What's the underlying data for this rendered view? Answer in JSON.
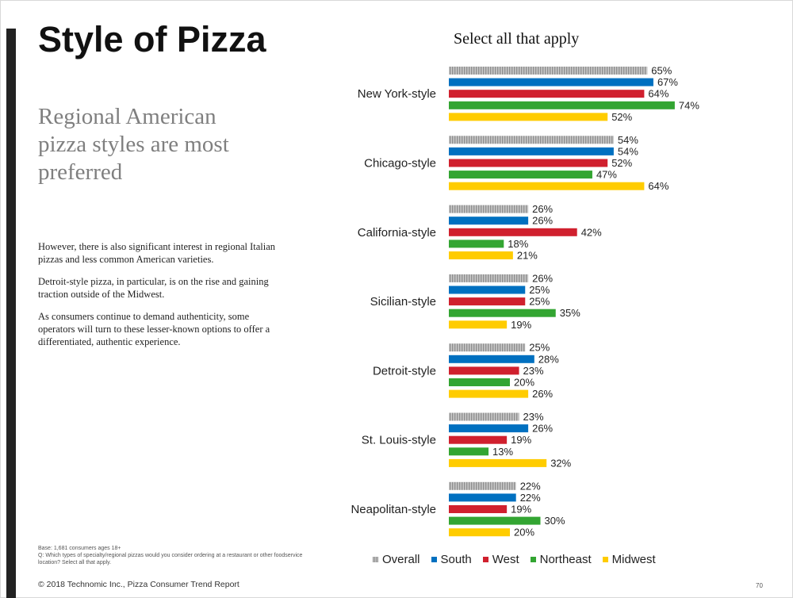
{
  "slide": {
    "title": "Style of Pizza",
    "subtitle": "Regional American pizza styles are most preferred",
    "paragraphs": [
      "However, there is also significant interest in regional Italian pizzas and less common American varieties.",
      "Detroit-style pizza, in particular, is on the rise and gaining traction outside of the Midwest.",
      "As consumers continue to demand authenticity, some operators will turn to these lesser-known options to offer a differentiated, authentic experience."
    ],
    "base_note": "Base: 1,681 consumers ages 18+",
    "question_note": "Q: Which types of specialty/regional pizzas would you consider ordering at a restaurant or other foodservice location? Select all that apply.",
    "copyright": "© 2018 Technomic Inc., Pizza Consumer Trend Report",
    "page_number": "70"
  },
  "chart_data": {
    "type": "bar",
    "orientation": "horizontal",
    "title": "Select all that apply",
    "categories": [
      "New York-style",
      "Chicago-style",
      "California-style",
      "Sicilian-style",
      "Detroit-style",
      "St. Louis-style",
      "Neapolitan-style"
    ],
    "series": [
      {
        "name": "Overall",
        "color": "#a6a6a6",
        "values": [
          65,
          54,
          26,
          26,
          25,
          23,
          22
        ]
      },
      {
        "name": "South",
        "color": "#0070c0",
        "values": [
          67,
          54,
          26,
          25,
          28,
          26,
          22
        ]
      },
      {
        "name": "West",
        "color": "#d0202e",
        "values": [
          64,
          52,
          42,
          25,
          23,
          19,
          19
        ]
      },
      {
        "name": "Northeast",
        "color": "#33a532",
        "values": [
          74,
          47,
          18,
          35,
          20,
          13,
          30
        ]
      },
      {
        "name": "Midwest",
        "color": "#ffcc00",
        "values": [
          52,
          64,
          21,
          19,
          26,
          32,
          20
        ]
      }
    ],
    "value_suffix": "%",
    "xlim": [
      0,
      100
    ],
    "legend_position": "bottom",
    "grid": false
  }
}
